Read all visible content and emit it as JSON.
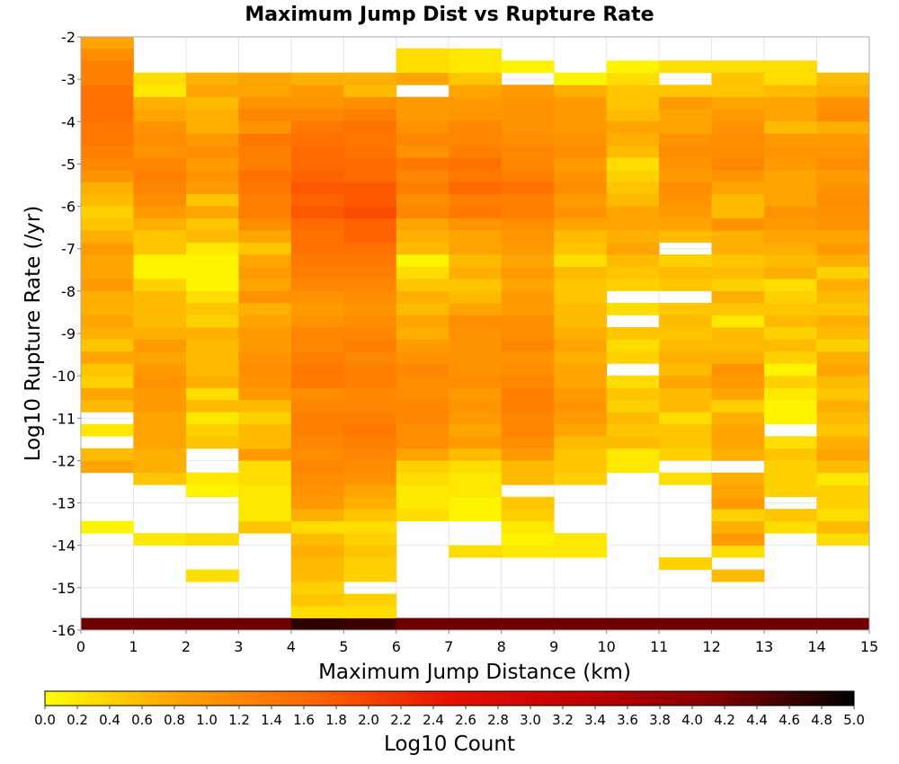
{
  "chart_data": {
    "type": "heatmap",
    "title": "Maximum Jump Dist vs Rupture Rate",
    "xlabel": "Maximum Jump Distance (km)",
    "ylabel": "Log10 Rupture Rate (/yr)",
    "colorbar_label": "Log10 Count",
    "xlim": [
      0,
      15
    ],
    "ylim": [
      -16,
      -2
    ],
    "x_ticks": [
      "0",
      "1",
      "2",
      "3",
      "4",
      "5",
      "6",
      "7",
      "8",
      "9",
      "10",
      "11",
      "12",
      "13",
      "14",
      "15"
    ],
    "y_ticks": [
      "-2",
      "-3",
      "-4",
      "-5",
      "-6",
      "-7",
      "-8",
      "-9",
      "-10",
      "-11",
      "-12",
      "-13",
      "-14",
      "-15",
      "-16"
    ],
    "colorbar_ticks": [
      "0.0",
      "0.2",
      "0.4",
      "0.6",
      "0.8",
      "1.0",
      "1.2",
      "1.4",
      "1.6",
      "1.8",
      "2.0",
      "2.2",
      "2.4",
      "2.6",
      "2.8",
      "3.0",
      "3.2",
      "3.4",
      "3.6",
      "3.8",
      "4.0",
      "4.2",
      "4.4",
      "4.6",
      "4.8",
      "5.0"
    ],
    "color_range": [
      0,
      5
    ],
    "colormap": [
      "#ffff00",
      "#ffa000",
      "#ff6600",
      "#e81000",
      "#c00000",
      "#800000",
      "#000000"
    ],
    "x_bin_width": 1,
    "y_bin_height": 0.286,
    "y_bin_start": -16,
    "grid": true,
    "notes": "z values are Log10 Count per (x bin, y bin); null = empty cell. cells[i] lists column i (x from i to i+1), rows from y=-16 upward.",
    "cells": [
      [
        4.3,
        null,
        null,
        null,
        null,
        null,
        null,
        null,
        0.1,
        null,
        null,
        null,
        null,
        0.8,
        0.6,
        null,
        0.2,
        null,
        0.6,
        0.8,
        0.4,
        0.5,
        0.8,
        0.5,
        0.7,
        0.8,
        0.7,
        0.7,
        0.9,
        0.8,
        0.8,
        0.9,
        0.7,
        0.5,
        0.4,
        0.6,
        0.7,
        1.0,
        1.2,
        1.3,
        1.4,
        1.4,
        1.5,
        1.5,
        1.5,
        1.3,
        1.3,
        1.1,
        0.8,
        0.5,
        null
      ],
      [
        4.3,
        null,
        null,
        null,
        null,
        null,
        null,
        0.2,
        null,
        null,
        null,
        null,
        0.5,
        0.7,
        0.7,
        0.8,
        0.8,
        0.8,
        0.9,
        0.9,
        1.0,
        0.9,
        0.8,
        0.9,
        0.7,
        0.6,
        0.6,
        0.6,
        0.4,
        0.1,
        0.1,
        0.5,
        0.5,
        0.7,
        0.9,
        1.1,
        1.2,
        1.3,
        1.2,
        1.0,
        1.1,
        1.0,
        0.8,
        0.7,
        0.2,
        0.3,
        null,
        null,
        null,
        null,
        null
      ],
      [
        4.3,
        null,
        null,
        null,
        0.3,
        null,
        null,
        0.3,
        null,
        null,
        null,
        0.1,
        0.2,
        null,
        null,
        0.5,
        0.4,
        0.2,
        0.6,
        0.3,
        0.7,
        0.6,
        0.6,
        0.6,
        0.7,
        0.4,
        0.5,
        0.3,
        0.1,
        0.1,
        0.1,
        0.2,
        0.6,
        0.5,
        0.8,
        0.5,
        0.9,
        1.0,
        0.9,
        1.1,
        0.9,
        0.7,
        0.7,
        0.6,
        0.8,
        0.7,
        null,
        null,
        null,
        null,
        null
      ],
      [
        4.3,
        null,
        null,
        null,
        null,
        null,
        null,
        null,
        0.5,
        0.2,
        0.2,
        0.2,
        0.3,
        0.3,
        0.9,
        0.6,
        0.6,
        0.4,
        0.6,
        0.9,
        1.0,
        1.1,
        1.0,
        0.9,
        0.9,
        0.8,
        0.7,
        1.0,
        0.8,
        0.9,
        0.8,
        0.5,
        0.8,
        1.1,
        1.3,
        1.3,
        1.4,
        1.5,
        1.3,
        1.3,
        1.4,
        1.0,
        1.2,
        1.0,
        0.8,
        0.8,
        null,
        null,
        null,
        null,
        null
      ],
      [
        4.7,
        0.3,
        0.5,
        0.4,
        0.6,
        0.6,
        0.7,
        0.6,
        0.3,
        0.7,
        0.9,
        1.0,
        1.1,
        1.2,
        1.1,
        1.2,
        1.3,
        1.3,
        1.2,
        1.1,
        1.4,
        1.4,
        1.3,
        1.2,
        1.2,
        1.0,
        0.9,
        1.0,
        1.2,
        1.3,
        1.4,
        1.5,
        1.5,
        1.6,
        1.8,
        1.7,
        1.8,
        1.7,
        1.6,
        1.6,
        1.5,
        1.4,
        1.2,
        1.0,
        0.9,
        0.7,
        null,
        null,
        null,
        null,
        null
      ],
      [
        4.6,
        0.3,
        0.4,
        null,
        0.4,
        0.4,
        0.5,
        0.4,
        0.3,
        0.5,
        0.7,
        0.8,
        1.0,
        1.1,
        1.2,
        1.3,
        1.4,
        1.3,
        1.2,
        1.2,
        1.3,
        1.3,
        1.2,
        1.3,
        1.2,
        1.1,
        1.0,
        1.1,
        1.2,
        1.3,
        1.4,
        1.5,
        1.7,
        1.7,
        1.9,
        1.8,
        1.8,
        1.6,
        1.6,
        1.5,
        1.4,
        1.5,
        1.3,
        1.1,
        0.6,
        0.7,
        null,
        null,
        null,
        null,
        null
      ],
      [
        4.3,
        null,
        null,
        null,
        null,
        null,
        null,
        null,
        null,
        0.3,
        0.2,
        0.2,
        0.3,
        0.4,
        0.8,
        1.1,
        1.1,
        1.2,
        1.2,
        1.1,
        1.1,
        1.2,
        1.0,
        0.9,
        0.7,
        0.8,
        0.6,
        0.7,
        0.5,
        0.3,
        0.1,
        0.6,
        0.7,
        0.8,
        1.2,
        1.1,
        1.3,
        1.2,
        1.4,
        1.0,
        1.2,
        1.0,
        0.9,
        0.9,
        null,
        0.8,
        0.3,
        0.3,
        null,
        null,
        null
      ],
      [
        4.3,
        null,
        null,
        null,
        null,
        null,
        0.3,
        null,
        null,
        0.1,
        0.1,
        0.2,
        0.2,
        0.3,
        0.6,
        0.9,
        0.8,
        0.9,
        1.0,
        0.9,
        1.1,
        1.0,
        1.0,
        1.0,
        1.0,
        1.1,
        0.8,
        0.6,
        0.5,
        0.7,
        0.6,
        0.8,
        0.8,
        1.0,
        1.4,
        1.3,
        1.6,
        1.4,
        1.5,
        1.3,
        1.2,
        1.2,
        1.0,
        0.9,
        0.8,
        0.5,
        0.2,
        0.2,
        null,
        null,
        null
      ],
      [
        4.3,
        null,
        null,
        null,
        null,
        null,
        0.2,
        0.1,
        0.2,
        0.4,
        0.5,
        null,
        0.6,
        0.6,
        0.9,
        1.1,
        1.2,
        1.2,
        1.3,
        1.3,
        1.2,
        1.1,
        1.0,
        1.2,
        1.1,
        1.1,
        0.9,
        0.9,
        0.8,
        0.9,
        0.8,
        0.9,
        1.0,
        1.1,
        1.3,
        1.3,
        1.5,
        1.3,
        1.2,
        1.2,
        1.1,
        1.0,
        1.0,
        1.0,
        0.9,
        null,
        0.1,
        null,
        null,
        null,
        null
      ],
      [
        4.3,
        null,
        null,
        null,
        null,
        null,
        0.2,
        0.2,
        null,
        null,
        null,
        null,
        0.4,
        0.5,
        0.5,
        0.6,
        0.8,
        0.9,
        1.0,
        0.9,
        0.8,
        0.8,
        0.7,
        0.8,
        0.7,
        0.6,
        0.6,
        0.5,
        0.5,
        0.6,
        0.3,
        0.5,
        0.6,
        0.8,
        1.0,
        0.9,
        1.1,
        1.0,
        0.9,
        1.1,
        1.0,
        0.9,
        0.9,
        0.9,
        0.7,
        0.1,
        null,
        null,
        null,
        null,
        null
      ],
      [
        4.3,
        null,
        null,
        null,
        null,
        null,
        null,
        null,
        null,
        null,
        null,
        null,
        null,
        0.2,
        0.2,
        0.6,
        0.5,
        0.6,
        0.4,
        0.5,
        0.3,
        null,
        0.4,
        0.3,
        0.5,
        null,
        0.3,
        null,
        0.4,
        0.5,
        0.6,
        0.8,
        0.7,
        0.8,
        0.8,
        0.6,
        0.5,
        0.4,
        0.3,
        0.6,
        0.7,
        0.8,
        0.6,
        0.5,
        0.5,
        0.3,
        0.1,
        null,
        null,
        null,
        null
      ],
      [
        4.3,
        null,
        null,
        null,
        null,
        0.4,
        null,
        null,
        null,
        null,
        null,
        null,
        0.3,
        null,
        0.4,
        0.5,
        0.5,
        0.3,
        0.6,
        0.6,
        0.8,
        0.6,
        0.7,
        0.6,
        0.5,
        0.6,
        0.5,
        null,
        0.5,
        0.6,
        0.4,
        null,
        0.6,
        0.8,
        0.9,
        1.0,
        1.1,
        0.9,
        1.0,
        1.1,
        1.0,
        0.8,
        0.8,
        0.9,
        0.5,
        null,
        0.3,
        null,
        null,
        null,
        null
      ],
      [
        4.3,
        null,
        null,
        null,
        0.6,
        null,
        0.3,
        0.9,
        0.7,
        0.4,
        0.9,
        0.8,
        0.7,
        null,
        0.7,
        0.8,
        0.8,
        0.7,
        0.4,
        0.8,
        0.9,
        1.0,
        0.7,
        0.6,
        0.6,
        0.2,
        0.5,
        0.7,
        0.4,
        0.6,
        0.5,
        0.7,
        0.7,
        1.0,
        0.6,
        0.6,
        0.8,
        1.0,
        1.2,
        1.1,
        1.1,
        1.0,
        0.9,
        0.8,
        0.5,
        0.5,
        0.3,
        null,
        null,
        null,
        null
      ],
      [
        4.3,
        null,
        null,
        null,
        null,
        null,
        null,
        null,
        0.3,
        0.5,
        null,
        0.4,
        0.4,
        0.4,
        0.5,
        0.3,
        null,
        0.1,
        0.1,
        0.2,
        0.4,
        0.1,
        0.4,
        0.6,
        0.4,
        0.6,
        0.5,
        0.4,
        0.3,
        0.7,
        0.6,
        0.7,
        0.8,
        0.9,
        1.0,
        0.8,
        0.8,
        0.8,
        0.9,
        1.0,
        0.9,
        0.6,
        0.8,
        0.8,
        0.6,
        0.3,
        0.3,
        null,
        null,
        null,
        null
      ],
      [
        4.3,
        null,
        null,
        null,
        null,
        null,
        null,
        0.3,
        0.6,
        0.3,
        0.4,
        0.4,
        0.2,
        0.6,
        0.8,
        0.7,
        0.5,
        0.6,
        0.7,
        0.5,
        0.6,
        0.8,
        0.7,
        0.4,
        0.6,
        0.7,
        0.5,
        0.6,
        0.7,
        0.4,
        0.7,
        0.9,
        0.8,
        1.0,
        1.0,
        1.1,
        1.0,
        0.9,
        1.1,
        1.0,
        0.9,
        0.7,
        1.1,
        1.0,
        0.7,
        0.6,
        null,
        null,
        null,
        null,
        null
      ]
    ]
  }
}
